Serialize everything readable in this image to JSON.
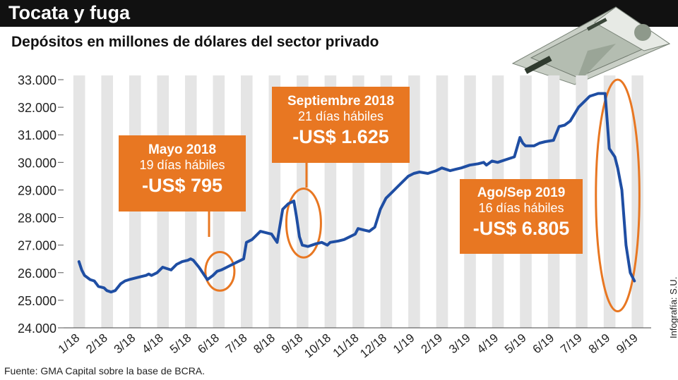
{
  "header": {
    "title": "Tocata y fuga",
    "subtitle": "Depósitos en millones de dólares del sector privado"
  },
  "footer": {
    "source": "Fuente: GMA Capital sobre la base de BCRA.",
    "credit": "Infografía: S.U."
  },
  "colors": {
    "line": "#1f4ea3",
    "accent": "#e87722",
    "stripe": "#e5e5e5",
    "title_bg": "#111111"
  },
  "callouts": [
    {
      "title": "Mayo 2018",
      "days": "19 días hábiles",
      "value": "-US$ 795"
    },
    {
      "title": "Septiembre 2018",
      "days": "21 días hábiles",
      "value": "-US$ 1.625"
    },
    {
      "title": "Ago/Sep 2019",
      "days": "16 días hábiles",
      "value": "-US$ 6.805"
    }
  ],
  "illustration": "money-paper-plane",
  "chart_data": {
    "type": "line",
    "title": "Depósitos en millones de dólares del sector privado",
    "xlabel": "",
    "ylabel": "",
    "ylim": [
      24000,
      33000
    ],
    "yticks": [
      24000,
      25000,
      26000,
      27000,
      28000,
      29000,
      30000,
      31000,
      32000,
      33000
    ],
    "ytick_labels": [
      "24.000",
      "25.000",
      "26.000",
      "27.000",
      "28.000",
      "29.000",
      "30.000",
      "31.000",
      "32.000",
      "33.000"
    ],
    "xlim": [
      1,
      21
    ],
    "xtick_labels": [
      "1/18",
      "2/18",
      "3/18",
      "4/18",
      "5/18",
      "6/18",
      "7/18",
      "8/18",
      "9/18",
      "10/18",
      "11/18",
      "12/18",
      "1/19",
      "2/19",
      "3/19",
      "4/19",
      "5/19",
      "6/19",
      "7/19",
      "8/19",
      "9/19"
    ],
    "grid": "alternating vertical stripes",
    "series": [
      {
        "x": [
          1.0,
          1.1,
          1.2,
          1.4,
          1.55,
          1.7,
          1.9,
          2.0,
          2.15,
          2.3,
          2.5,
          2.65,
          2.8,
          3.0,
          3.2,
          3.4,
          3.5,
          3.6,
          3.8,
          4.0,
          4.3,
          4.5,
          4.7,
          4.9,
          5.0,
          5.1,
          5.3,
          5.5,
          5.6,
          5.8,
          5.95,
          6.1,
          6.3,
          6.5,
          6.7,
          6.9,
          7.0,
          7.2,
          7.3,
          7.5,
          7.7,
          7.9,
          8.0,
          8.1,
          8.3,
          8.5,
          8.7,
          8.8,
          8.9,
          9.0,
          9.2,
          9.35,
          9.5,
          9.7,
          9.9,
          10.0,
          10.3,
          10.5,
          10.7,
          10.9,
          11.0,
          11.2,
          11.4,
          11.6,
          11.8,
          12.0,
          12.2,
          12.4,
          12.6,
          12.8,
          13.0,
          13.2,
          13.5,
          13.8,
          14.0,
          14.3,
          14.5,
          14.7,
          15.0,
          15.3,
          15.5,
          15.6,
          15.8,
          16.0,
          16.3,
          16.6,
          16.8,
          16.9,
          17.0,
          17.3,
          17.5,
          17.7,
          18.0,
          18.2,
          18.4,
          18.6,
          18.9,
          19.1,
          19.3,
          19.6,
          19.85,
          20.0,
          20.2,
          20.3,
          20.45,
          20.6,
          20.75,
          20.9
        ],
        "y": [
          26400,
          26100,
          25900,
          25750,
          25700,
          25500,
          25450,
          25350,
          25300,
          25350,
          25600,
          25700,
          25750,
          25800,
          25850,
          25900,
          25950,
          25900,
          26000,
          26200,
          26100,
          26300,
          26400,
          26450,
          26500,
          26450,
          26200,
          25900,
          25750,
          25900,
          26050,
          26100,
          26200,
          26300,
          26400,
          26500,
          27100,
          27200,
          27300,
          27500,
          27450,
          27400,
          27250,
          27100,
          28300,
          28500,
          28600,
          28000,
          27300,
          27000,
          26950,
          27000,
          27050,
          27100,
          27000,
          27100,
          27150,
          27200,
          27300,
          27400,
          27600,
          27550,
          27500,
          27650,
          28300,
          28700,
          28900,
          29100,
          29300,
          29500,
          29600,
          29650,
          29600,
          29700,
          29800,
          29700,
          29750,
          29800,
          29900,
          29950,
          30000,
          29900,
          30050,
          30000,
          30100,
          30200,
          30900,
          30700,
          30600,
          30600,
          30700,
          30750,
          30800,
          31300,
          31350,
          31500,
          32000,
          32200,
          32400,
          32500,
          32500,
          30500,
          30200,
          29800,
          29000,
          27000,
          26000,
          25700
        ]
      }
    ]
  }
}
